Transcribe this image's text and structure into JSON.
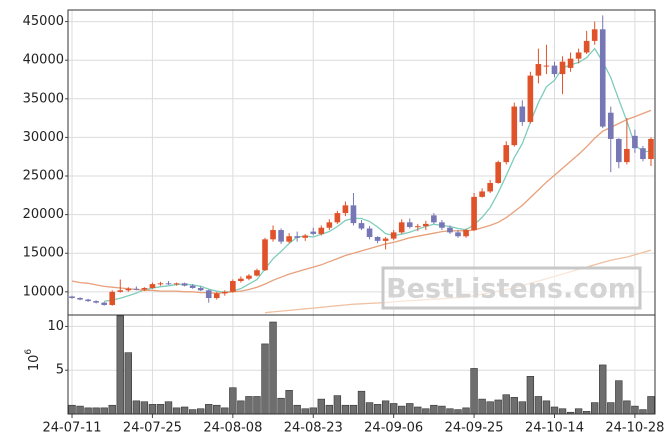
{
  "chart_data": [
    {
      "type": "candlestick",
      "up_color": "#e0522a",
      "down_color": "#7777b5",
      "open": [
        9400,
        9200,
        9000,
        8800,
        8600,
        8300,
        10000,
        10200,
        10400,
        10300,
        10500,
        11000,
        11100,
        11000,
        11100,
        10800,
        10500,
        10200,
        9200,
        9800,
        10000,
        11400,
        11700,
        12100,
        12800,
        16800,
        18000,
        16500,
        17200,
        17000,
        17800,
        17500,
        18300,
        19000,
        20200,
        21200,
        18900,
        18200,
        17100,
        16600,
        16900,
        17700,
        19000,
        18400,
        18500,
        19900,
        19000,
        18300,
        17700,
        17200,
        18000,
        22300,
        23000,
        24100,
        26800,
        29000,
        34000,
        32000,
        38000,
        39300,
        39300,
        38200,
        39000,
        40200,
        41000,
        42500,
        44000,
        33200,
        29800,
        26800,
        30200,
        28600,
        27200
      ],
      "high": [
        9500,
        9300,
        9100,
        8900,
        8700,
        10200,
        11600,
        10600,
        10700,
        10600,
        11200,
        11300,
        11400,
        11200,
        11200,
        11000,
        10700,
        10300,
        10000,
        10200,
        11600,
        12000,
        12300,
        13000,
        17000,
        18600,
        18200,
        17600,
        17800,
        17500,
        18300,
        18600,
        19400,
        20500,
        21700,
        22800,
        19300,
        18500,
        17200,
        17100,
        18000,
        19400,
        19500,
        18800,
        19200,
        20200,
        19300,
        18600,
        18000,
        18200,
        22800,
        23400,
        24500,
        27000,
        29500,
        34500,
        34800,
        38500,
        41500,
        42000,
        39800,
        40500,
        41000,
        41500,
        43800,
        45000,
        45800,
        34000,
        29900,
        32500,
        31000,
        28900,
        30000
      ],
      "low": [
        9100,
        8900,
        8700,
        8500,
        8200,
        8200,
        9900,
        10000,
        10200,
        10100,
        10400,
        10800,
        10900,
        10800,
        10700,
        10400,
        10100,
        8600,
        9000,
        9500,
        9900,
        11200,
        11500,
        12000,
        12700,
        16500,
        16200,
        16300,
        16500,
        16600,
        17300,
        17300,
        18000,
        18800,
        19800,
        18600,
        18000,
        16800,
        16300,
        15500,
        16700,
        17500,
        18200,
        17900,
        18000,
        18800,
        18000,
        17500,
        17000,
        17000,
        17900,
        22200,
        22800,
        24000,
        26500,
        28800,
        31500,
        31800,
        37000,
        38200,
        37800,
        35600,
        38500,
        39600,
        40800,
        42000,
        31200,
        25500,
        26000,
        26500,
        28000,
        26900,
        26300
      ],
      "close": [
        9200,
        9000,
        8800,
        8600,
        8300,
        10000,
        10200,
        10400,
        10300,
        10500,
        11000,
        11100,
        11000,
        11100,
        10800,
        10500,
        10200,
        9200,
        9800,
        10000,
        11400,
        11700,
        12100,
        12800,
        16800,
        18000,
        16500,
        17200,
        17000,
        17300,
        17500,
        18300,
        19000,
        20200,
        21200,
        18900,
        18200,
        17100,
        16600,
        16900,
        17700,
        19000,
        18400,
        18500,
        18800,
        19000,
        18300,
        17700,
        17200,
        18000,
        22300,
        23000,
        24100,
        26800,
        29000,
        34000,
        32000,
        38000,
        39500,
        39300,
        38200,
        39800,
        40200,
        41000,
        42500,
        44000,
        31400,
        29800,
        26800,
        28500,
        28600,
        27200,
        29800
      ],
      "lines": [
        {
          "color": "#7fcdbb",
          "values": [
            null,
            null,
            null,
            null,
            8780,
            8940,
            9180,
            9500,
            9840,
            10280,
            10480,
            10660,
            10780,
            10940,
            11000,
            10900,
            10720,
            10360,
            10100,
            9940,
            10120,
            10420,
            11000,
            11600,
            12960,
            14280,
            15240,
            16260,
            17100,
            17200,
            17100,
            17460,
            17820,
            18460,
            19240,
            19520,
            19500,
            19120,
            18400,
            17540,
            17300,
            17460,
            17720,
            18100,
            18480,
            18740,
            18600,
            18460,
            18200,
            18040,
            18700,
            19640,
            20920,
            22840,
            25040,
            27380,
            29180,
            31960,
            34500,
            36560,
            37400,
            38960,
            39400,
            39700,
            40340,
            41500,
            39820,
            37740,
            34900,
            32100,
            29020,
            28180,
            28180
          ]
        },
        {
          "color": "#e8a07a",
          "values": [
            11400,
            11200,
            11100,
            10900,
            10700,
            10600,
            10500,
            10400,
            10300,
            10200,
            10200,
            10100,
            10100,
            10100,
            10000,
            10000,
            9900,
            9900,
            9800,
            9900,
            10000,
            10100,
            10300,
            10600,
            11000,
            11500,
            11900,
            12300,
            12600,
            12900,
            13200,
            13500,
            13900,
            14300,
            14700,
            15000,
            15300,
            15600,
            15900,
            16200,
            16400,
            16700,
            17000,
            17200,
            17400,
            17600,
            17800,
            17900,
            17900,
            17900,
            18000,
            18300,
            18600,
            19000,
            19600,
            20400,
            21200,
            22200,
            23200,
            24200,
            25100,
            26000,
            26900,
            27800,
            28800,
            29900,
            30800,
            31300,
            31800,
            32300,
            32700,
            33100,
            33500
          ]
        },
        {
          "color": "#f0c0a0",
          "values": [
            null,
            null,
            null,
            null,
            null,
            null,
            null,
            null,
            null,
            null,
            null,
            null,
            null,
            null,
            null,
            null,
            null,
            null,
            null,
            null,
            null,
            null,
            null,
            null,
            7300,
            7400,
            7500,
            7600,
            7700,
            7800,
            7900,
            8000,
            8100,
            8200,
            8300,
            8400,
            8450,
            8500,
            8550,
            8600,
            8700,
            8800,
            8850,
            8900,
            9000,
            9050,
            9100,
            9200,
            9250,
            9300,
            9500,
            9700,
            9900,
            10100,
            10300,
            10500,
            10800,
            11100,
            11400,
            11700,
            12000,
            12300,
            12600,
            12900,
            13200,
            13500,
            13800,
            14100,
            14300,
            14500,
            14800,
            15100,
            15400
          ]
        }
      ],
      "ylim": [
        7000,
        46500
      ],
      "yticks": [
        10000,
        15000,
        20000,
        25000,
        30000,
        35000,
        40000,
        45000
      ],
      "grid": true,
      "watermark": "BestListens.com"
    },
    {
      "type": "bar",
      "color": "#6e6e6e",
      "categories": [
        "24-07-11",
        null,
        null,
        null,
        null,
        null,
        null,
        null,
        null,
        null,
        "24-07-25",
        null,
        null,
        null,
        null,
        null,
        null,
        null,
        null,
        null,
        "24-08-08",
        null,
        null,
        null,
        null,
        null,
        null,
        null,
        null,
        null,
        "24-08-23",
        null,
        null,
        null,
        null,
        null,
        null,
        null,
        null,
        null,
        "24-09-06",
        null,
        null,
        null,
        null,
        null,
        null,
        null,
        null,
        null,
        "24-09-25",
        null,
        null,
        null,
        null,
        null,
        null,
        null,
        null,
        null,
        "24-10-14",
        null,
        null,
        null,
        null,
        null,
        null,
        null,
        null,
        null,
        "24-10-28",
        null,
        null
      ],
      "values": [
        1,
        0.9,
        0.7,
        0.7,
        0.7,
        1,
        11.2,
        7,
        1.5,
        1.4,
        1.1,
        1.1,
        1.4,
        0.7,
        0.8,
        0.5,
        0.6,
        1.1,
        1,
        0.7,
        3,
        1.5,
        2,
        2,
        8,
        10.5,
        1.8,
        2.7,
        1,
        0.6,
        0.7,
        1.7,
        1,
        2.1,
        1,
        1,
        2.6,
        1.3,
        1.1,
        1.5,
        1.2,
        0.9,
        1.2,
        0.8,
        0.6,
        1,
        0.9,
        0.6,
        0.5,
        0.7,
        5.2,
        1.7,
        1.4,
        1.6,
        2.2,
        1.9,
        1.4,
        4.3,
        2,
        1.5,
        0.8,
        0.6,
        0.2,
        0.6,
        0.3,
        1.3,
        5.6,
        1.3,
        3.8,
        1.5,
        0.9,
        0.5,
        2
      ],
      "ylim": [
        0,
        11.3
      ],
      "yticks": [
        5,
        10
      ],
      "y_label": {
        "base": "10",
        "exponent": "6"
      },
      "grid": true
    }
  ]
}
